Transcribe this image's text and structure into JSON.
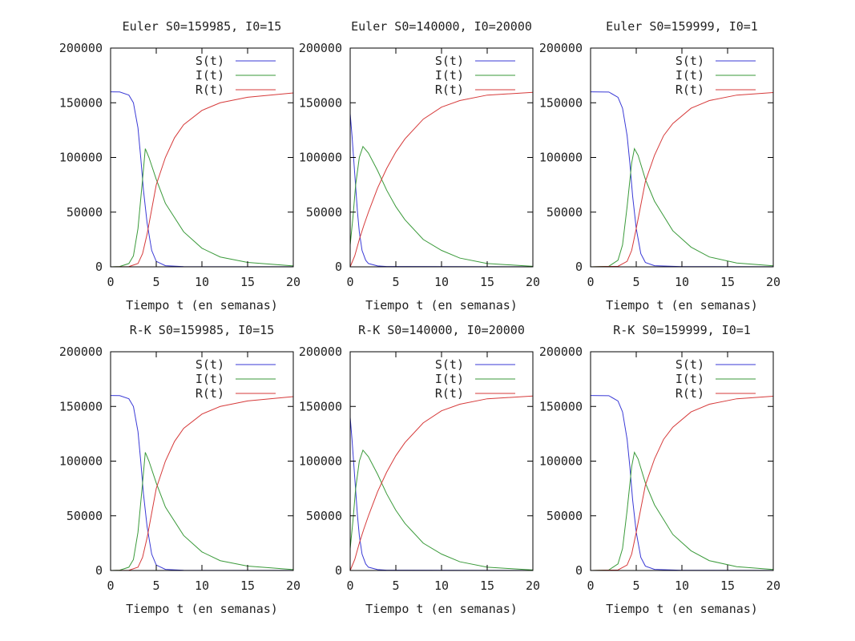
{
  "chart_data": [
    {
      "type": "line",
      "title": "Euler S0=159985, I0=15",
      "xlabel": "Tiempo t (en semanas)",
      "ylabel": "",
      "xlim": [
        0,
        20
      ],
      "ylim": [
        0,
        200000
      ],
      "xticks": [
        0,
        5,
        10,
        15,
        20
      ],
      "yticks": [
        0,
        50000,
        100000,
        150000,
        200000
      ],
      "legend_position": "top-right",
      "series": [
        {
          "name": "S(t)",
          "color": "#3a3ad6",
          "x": [
            0,
            1,
            2,
            2.5,
            3,
            3.3,
            3.6,
            4,
            4.5,
            5,
            6,
            8,
            10,
            15,
            20
          ],
          "values": [
            160000,
            159900,
            157000,
            150000,
            127000,
            100000,
            70000,
            40000,
            15000,
            5000,
            1000,
            200,
            100,
            50,
            50
          ]
        },
        {
          "name": "I(t)",
          "color": "#3a9a3a",
          "x": [
            0,
            1,
            2,
            2.5,
            3,
            3.5,
            3.8,
            4.2,
            5,
            6,
            8,
            10,
            12,
            15,
            20
          ],
          "values": [
            15,
            300,
            3000,
            10000,
            35000,
            80000,
            108000,
            100000,
            80000,
            58000,
            32000,
            17000,
            9000,
            4000,
            800
          ]
        },
        {
          "name": "R(t)",
          "color": "#d63a3a",
          "x": [
            0,
            2,
            3,
            3.5,
            4,
            5,
            6,
            7,
            8,
            10,
            12,
            15,
            20
          ],
          "values": [
            0,
            200,
            3000,
            12000,
            30000,
            75000,
            100000,
            118000,
            130000,
            143000,
            150000,
            155000,
            159000
          ]
        }
      ]
    },
    {
      "type": "line",
      "title": "Euler S0=140000, I0=20000",
      "xlabel": "Tiempo t (en semanas)",
      "ylabel": "",
      "xlim": [
        0,
        20
      ],
      "ylim": [
        0,
        200000
      ],
      "xticks": [
        0,
        5,
        10,
        15,
        20
      ],
      "yticks": [
        0,
        50000,
        100000,
        150000,
        200000
      ],
      "legend_position": "top-right",
      "series": [
        {
          "name": "S(t)",
          "color": "#3a3ad6",
          "x": [
            0,
            0.2,
            0.5,
            0.8,
            1,
            1.3,
            1.7,
            2,
            3,
            4,
            20
          ],
          "values": [
            140000,
            120000,
            85000,
            50000,
            32000,
            15000,
            6000,
            3000,
            800,
            300,
            50
          ]
        },
        {
          "name": "I(t)",
          "color": "#3a9a3a",
          "x": [
            0,
            0.3,
            0.6,
            1,
            1.4,
            2,
            3,
            4,
            5,
            6,
            8,
            10,
            12,
            15,
            20
          ],
          "values": [
            20000,
            45000,
            75000,
            100000,
            110000,
            104000,
            88000,
            70000,
            55000,
            43000,
            25000,
            15000,
            8000,
            3000,
            500
          ]
        },
        {
          "name": "R(t)",
          "color": "#d63a3a",
          "x": [
            0,
            0.5,
            1,
            1.5,
            2,
            3,
            4,
            5,
            6,
            8,
            10,
            12,
            15,
            20
          ],
          "values": [
            0,
            10000,
            25000,
            38000,
            50000,
            72000,
            90000,
            105000,
            117000,
            135000,
            146000,
            152000,
            157000,
            159500
          ]
        }
      ]
    },
    {
      "type": "line",
      "title": "Euler S0=159999, I0=1",
      "xlabel": "Tiempo t (en semanas)",
      "ylabel": "",
      "xlim": [
        0,
        20
      ],
      "ylim": [
        0,
        200000
      ],
      "xticks": [
        0,
        5,
        10,
        15,
        20
      ],
      "yticks": [
        0,
        50000,
        100000,
        150000,
        200000
      ],
      "legend_position": "top-right",
      "series": [
        {
          "name": "S(t)",
          "color": "#3a3ad6",
          "x": [
            0,
            2,
            3,
            3.5,
            4,
            4.3,
            4.6,
            5,
            5.5,
            6,
            7,
            10,
            20
          ],
          "values": [
            160000,
            159800,
            155000,
            145000,
            120000,
            95000,
            65000,
            35000,
            12000,
            4000,
            1000,
            200,
            50
          ]
        },
        {
          "name": "I(t)",
          "color": "#3a9a3a",
          "x": [
            0,
            2,
            3,
            3.5,
            4,
            4.5,
            4.8,
            5.2,
            6,
            7,
            9,
            11,
            13,
            16,
            20
          ],
          "values": [
            1,
            500,
            6000,
            20000,
            55000,
            95000,
            108000,
            102000,
            80000,
            60000,
            33000,
            18000,
            9000,
            3500,
            900
          ]
        },
        {
          "name": "R(t)",
          "color": "#d63a3a",
          "x": [
            0,
            3,
            4,
            4.5,
            5,
            6,
            7,
            8,
            9,
            11,
            13,
            16,
            20
          ],
          "values": [
            0,
            500,
            5000,
            15000,
            35000,
            78000,
            102000,
            120000,
            131000,
            145000,
            152000,
            157000,
            159300
          ]
        }
      ]
    },
    {
      "type": "line",
      "title": "R-K S0=159985, I0=15",
      "xlabel": "Tiempo t (en semanas)",
      "ylabel": "",
      "xlim": [
        0,
        20
      ],
      "ylim": [
        0,
        200000
      ],
      "xticks": [
        0,
        5,
        10,
        15,
        20
      ],
      "yticks": [
        0,
        50000,
        100000,
        150000,
        200000
      ],
      "legend_position": "top-right",
      "series": [
        {
          "name": "S(t)",
          "color": "#3a3ad6",
          "x": [
            0,
            1,
            2,
            2.5,
            3,
            3.3,
            3.6,
            4,
            4.5,
            5,
            6,
            8,
            10,
            15,
            20
          ],
          "values": [
            160000,
            159900,
            157000,
            150000,
            127000,
            100000,
            70000,
            40000,
            15000,
            5000,
            1000,
            200,
            100,
            50,
            50
          ]
        },
        {
          "name": "I(t)",
          "color": "#3a9a3a",
          "x": [
            0,
            1,
            2,
            2.5,
            3,
            3.5,
            3.8,
            4.2,
            5,
            6,
            8,
            10,
            12,
            15,
            20
          ],
          "values": [
            15,
            300,
            3000,
            10000,
            35000,
            80000,
            108000,
            100000,
            80000,
            58000,
            32000,
            17000,
            9000,
            4000,
            800
          ]
        },
        {
          "name": "R(t)",
          "color": "#d63a3a",
          "x": [
            0,
            2,
            3,
            3.5,
            4,
            5,
            6,
            7,
            8,
            10,
            12,
            15,
            20
          ],
          "values": [
            0,
            200,
            3000,
            12000,
            30000,
            75000,
            100000,
            118000,
            130000,
            143000,
            150000,
            155000,
            159000
          ]
        }
      ]
    },
    {
      "type": "line",
      "title": "R-K S0=140000, I0=20000",
      "xlabel": "Tiempo t (en semanas)",
      "ylabel": "",
      "xlim": [
        0,
        20
      ],
      "ylim": [
        0,
        200000
      ],
      "xticks": [
        0,
        5,
        10,
        15,
        20
      ],
      "yticks": [
        0,
        50000,
        100000,
        150000,
        200000
      ],
      "legend_position": "top-right",
      "series": [
        {
          "name": "S(t)",
          "color": "#3a3ad6",
          "x": [
            0,
            0.2,
            0.5,
            0.8,
            1,
            1.3,
            1.7,
            2,
            3,
            4,
            20
          ],
          "values": [
            140000,
            120000,
            85000,
            50000,
            32000,
            15000,
            6000,
            3000,
            800,
            300,
            50
          ]
        },
        {
          "name": "I(t)",
          "color": "#3a9a3a",
          "x": [
            0,
            0.3,
            0.6,
            1,
            1.4,
            2,
            3,
            4,
            5,
            6,
            8,
            10,
            12,
            15,
            20
          ],
          "values": [
            20000,
            45000,
            75000,
            100000,
            110000,
            104000,
            88000,
            70000,
            55000,
            43000,
            25000,
            15000,
            8000,
            3000,
            500
          ]
        },
        {
          "name": "R(t)",
          "color": "#d63a3a",
          "x": [
            0,
            0.5,
            1,
            1.5,
            2,
            3,
            4,
            5,
            6,
            8,
            10,
            12,
            15,
            20
          ],
          "values": [
            0,
            10000,
            25000,
            38000,
            50000,
            72000,
            90000,
            105000,
            117000,
            135000,
            146000,
            152000,
            157000,
            159500
          ]
        }
      ]
    },
    {
      "type": "line",
      "title": "R-K S0=159999, I0=1",
      "xlabel": "Tiempo t (en semanas)",
      "ylabel": "",
      "xlim": [
        0,
        20
      ],
      "ylim": [
        0,
        200000
      ],
      "xticks": [
        0,
        5,
        10,
        15,
        20
      ],
      "yticks": [
        0,
        50000,
        100000,
        150000,
        200000
      ],
      "legend_position": "top-right",
      "series": [
        {
          "name": "S(t)",
          "color": "#3a3ad6",
          "x": [
            0,
            2,
            3,
            3.5,
            4,
            4.3,
            4.6,
            5,
            5.5,
            6,
            7,
            10,
            20
          ],
          "values": [
            160000,
            159800,
            155000,
            145000,
            120000,
            95000,
            65000,
            35000,
            12000,
            4000,
            1000,
            200,
            50
          ]
        },
        {
          "name": "I(t)",
          "color": "#3a9a3a",
          "x": [
            0,
            2,
            3,
            3.5,
            4,
            4.5,
            4.8,
            5.2,
            6,
            7,
            9,
            11,
            13,
            16,
            20
          ],
          "values": [
            1,
            500,
            6000,
            20000,
            55000,
            95000,
            108000,
            102000,
            80000,
            60000,
            33000,
            18000,
            9000,
            3500,
            900
          ]
        },
        {
          "name": "R(t)",
          "color": "#d63a3a",
          "x": [
            0,
            3,
            4,
            4.5,
            5,
            6,
            7,
            8,
            9,
            11,
            13,
            16,
            20
          ],
          "values": [
            0,
            500,
            5000,
            15000,
            35000,
            78000,
            102000,
            120000,
            131000,
            145000,
            152000,
            157000,
            159300
          ]
        }
      ]
    }
  ]
}
